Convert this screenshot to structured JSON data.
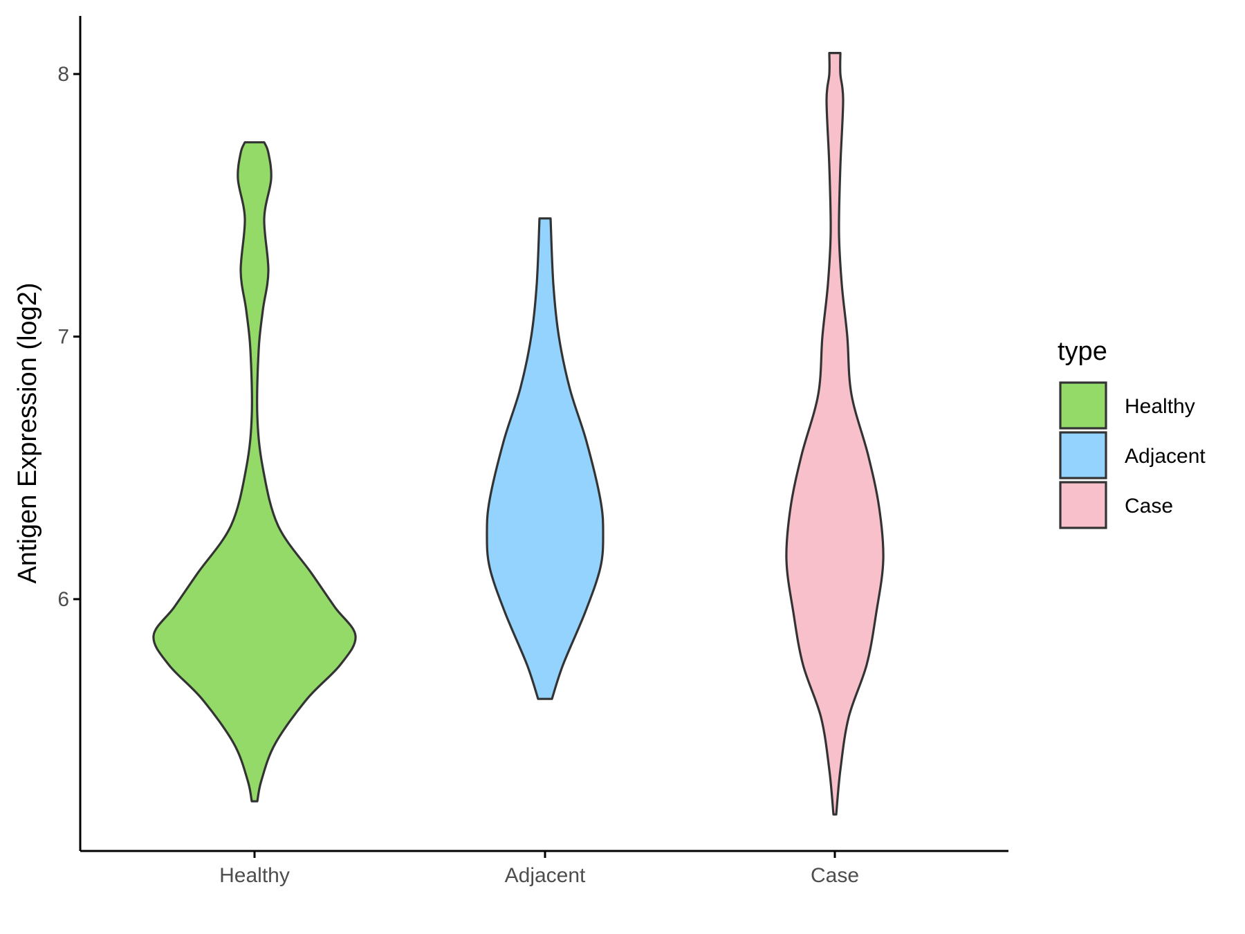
{
  "chart_data": {
    "type": "violin",
    "title": "",
    "xlabel": "",
    "ylabel": "Antigen Expression (log2)",
    "categories": [
      "Healthy",
      "Adjacent",
      "Case"
    ],
    "yticks": [
      6,
      7,
      8
    ],
    "ytick_labels": [
      "6",
      "7",
      "8"
    ],
    "ylim": [
      5.05,
      8.22
    ],
    "grid": false,
    "legend": {
      "title": "type",
      "position": "right",
      "entries": [
        "Healthy",
        "Adjacent",
        "Case"
      ]
    },
    "colors": {
      "Healthy": "#93DA69",
      "Adjacent": "#94D3FE",
      "Case": "#F7C0CB",
      "outline": "#333333",
      "axis": "#000000"
    },
    "series": [
      {
        "name": "Healthy",
        "min": 5.23,
        "max": 7.74,
        "profile": [
          [
            5.23,
            0.02
          ],
          [
            5.31,
            0.05
          ],
          [
            5.45,
            0.15
          ],
          [
            5.62,
            0.38
          ],
          [
            5.75,
            0.62
          ],
          [
            5.86,
            0.73
          ],
          [
            5.97,
            0.58
          ],
          [
            6.1,
            0.41
          ],
          [
            6.28,
            0.17
          ],
          [
            6.5,
            0.06
          ],
          [
            6.7,
            0.02
          ],
          [
            6.95,
            0.03
          ],
          [
            7.1,
            0.06
          ],
          [
            7.25,
            0.1
          ],
          [
            7.45,
            0.07
          ],
          [
            7.6,
            0.12
          ],
          [
            7.7,
            0.1
          ],
          [
            7.74,
            0.07
          ]
        ]
      },
      {
        "name": "Adjacent",
        "min": 5.62,
        "max": 7.45,
        "profile": [
          [
            5.62,
            0.05
          ],
          [
            5.75,
            0.13
          ],
          [
            5.95,
            0.29
          ],
          [
            6.12,
            0.4
          ],
          [
            6.25,
            0.42
          ],
          [
            6.38,
            0.4
          ],
          [
            6.6,
            0.3
          ],
          [
            6.8,
            0.18
          ],
          [
            7.0,
            0.1
          ],
          [
            7.2,
            0.06
          ],
          [
            7.45,
            0.04
          ]
        ]
      },
      {
        "name": "Case",
        "min": 5.18,
        "max": 8.08,
        "profile": [
          [
            5.18,
            0.01
          ],
          [
            5.35,
            0.04
          ],
          [
            5.55,
            0.1
          ],
          [
            5.75,
            0.23
          ],
          [
            5.95,
            0.3
          ],
          [
            6.15,
            0.35
          ],
          [
            6.35,
            0.32
          ],
          [
            6.55,
            0.24
          ],
          [
            6.78,
            0.12
          ],
          [
            7.0,
            0.09
          ],
          [
            7.2,
            0.05
          ],
          [
            7.4,
            0.03
          ],
          [
            7.65,
            0.04
          ],
          [
            7.9,
            0.06
          ],
          [
            8.0,
            0.04
          ],
          [
            8.08,
            0.04
          ]
        ]
      }
    ]
  }
}
